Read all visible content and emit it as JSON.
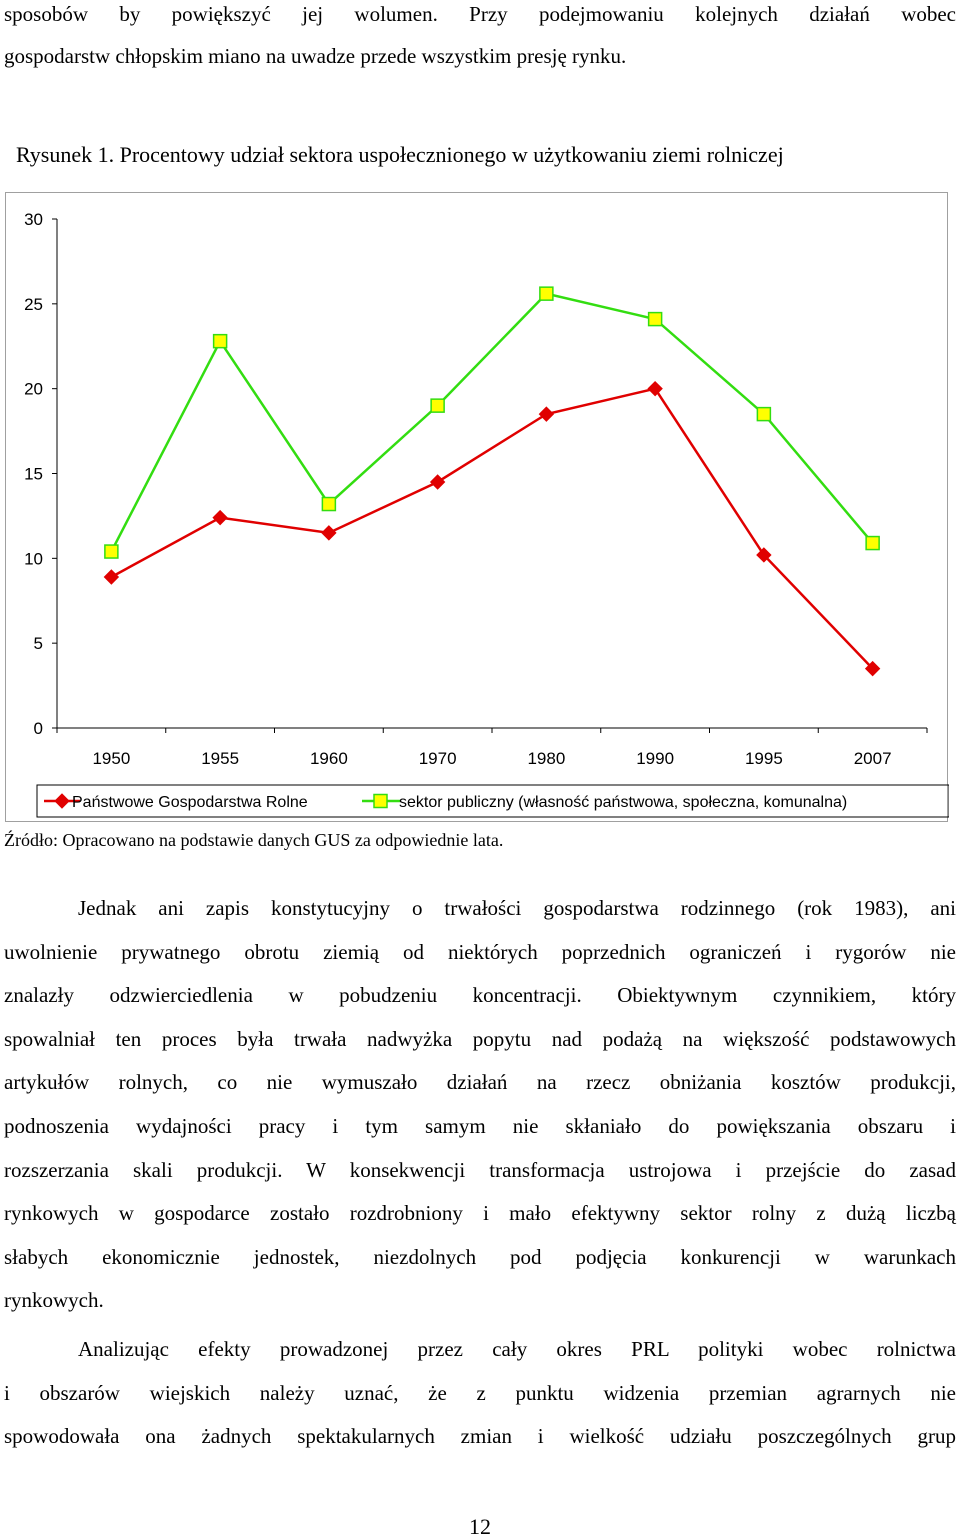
{
  "text_top": [
    "sposobów by powiększyć jej wolumen. Przy podejmowaniu kolejnych działań wobec",
    "gospodarstw chłopskim miano na uwadze przede wszystkim presję rynku."
  ],
  "figure_caption": "Rysunek 1. Procentowy udział sektora uspołecznionego w użytkowaniu ziemi rolniczej",
  "chart_data": {
    "type": "line",
    "categories": [
      "1950",
      "1955",
      "1960",
      "1970",
      "1980",
      "1990",
      "1995",
      "2007"
    ],
    "y_ticks": [
      "0",
      "5",
      "10",
      "15",
      "20",
      "25",
      "30"
    ],
    "ylim": [
      0,
      30
    ],
    "grid": false,
    "legend_position": "bottom",
    "series": [
      {
        "name": "Państwowe Gospodarstwa Rolne",
        "values": [
          8.9,
          12.4,
          11.5,
          14.5,
          18.5,
          20.0,
          10.2,
          3.5
        ],
        "color": "#e00000",
        "marker": "diamond"
      },
      {
        "name": "sektor publiczny (własność państwowa, społeczna, komunalna)",
        "values": [
          10.4,
          22.8,
          13.2,
          19.0,
          25.6,
          24.1,
          18.5,
          10.9
        ],
        "color": "#33dd11",
        "marker": "square",
        "marker_fill": "#ffff00"
      }
    ]
  },
  "source_note": "Źródło: Opracowano na podstawie danych GUS za odpowiednie lata.",
  "paragraph1_lines": [
    "Jednak ani zapis konstytucyjny o trwałości gospodarstwa rodzinnego (rok 1983), ani",
    "uwolnienie prywatnego obrotu ziemią od niektórych poprzednich ograniczeń i rygorów nie",
    "znalazły odzwierciedlenia w pobudzeniu koncentracji. Obiektywnym czynnikiem, który",
    "spowalniał ten proces była trwała nadwyżka popytu nad podażą na większość podstawowych",
    "artykułów rolnych, co nie wymuszało działań na rzecz obniżania kosztów produkcji,",
    "podnoszenia wydajności pracy i tym samym nie skłaniało do powiększania obszaru i",
    "rozszerzania skali produkcji. W konsekwencji transformacja ustrojowa i przejście do zasad",
    "rynkowych w gospodarce zostało rozdrobniony i mało efektywny sektor rolny z dużą liczbą",
    "słabych ekonomicznie jednostek, niezdolnych pod podjęcia konkurencji w warunkach",
    "rynkowych."
  ],
  "paragraph2_lines": [
    "Analizując efekty prowadzonej przez cały okres PRL polityki wobec rolnictwa",
    "i obszarów wiejskich należy uznać, że z punktu widzenia przemian agrarnych nie",
    "spowodowała ona żadnych spektakularnych zmian i wielkość udziału poszczególnych grup"
  ],
  "page_number": "12"
}
